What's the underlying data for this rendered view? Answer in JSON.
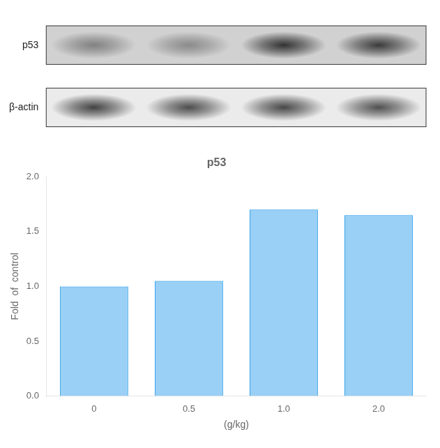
{
  "chart_data": [
    {
      "type": "blot",
      "categories": [
        null,
        null,
        null,
        null
      ],
      "series": [
        {
          "name": "p53",
          "values": [
            0.45,
            0.4,
            0.9,
            0.85
          ]
        },
        {
          "name": "β-actin",
          "values": [
            0.85,
            0.8,
            0.82,
            0.78
          ]
        }
      ],
      "tick_labels": "y"
    },
    {
      "type": "bar",
      "title": "p53",
      "xlabel": "(g/kg)",
      "ylabel": "Fold  of  control",
      "categories": [
        "0",
        "0.5",
        "1.0",
        "2.0"
      ],
      "values": [
        1.0,
        1.05,
        1.7,
        1.65
      ],
      "ylim": [
        0,
        2.0
      ],
      "yticks": [
        {
          "value": 0.0,
          "label": "0.0"
        },
        {
          "value": 0.5,
          "label": "0.5"
        },
        {
          "value": 1.0,
          "label": "1.0"
        },
        {
          "value": 1.5,
          "label": "1.5"
        },
        {
          "value": 2.0,
          "label": "2.0"
        }
      ],
      "grid": false
    }
  ]
}
